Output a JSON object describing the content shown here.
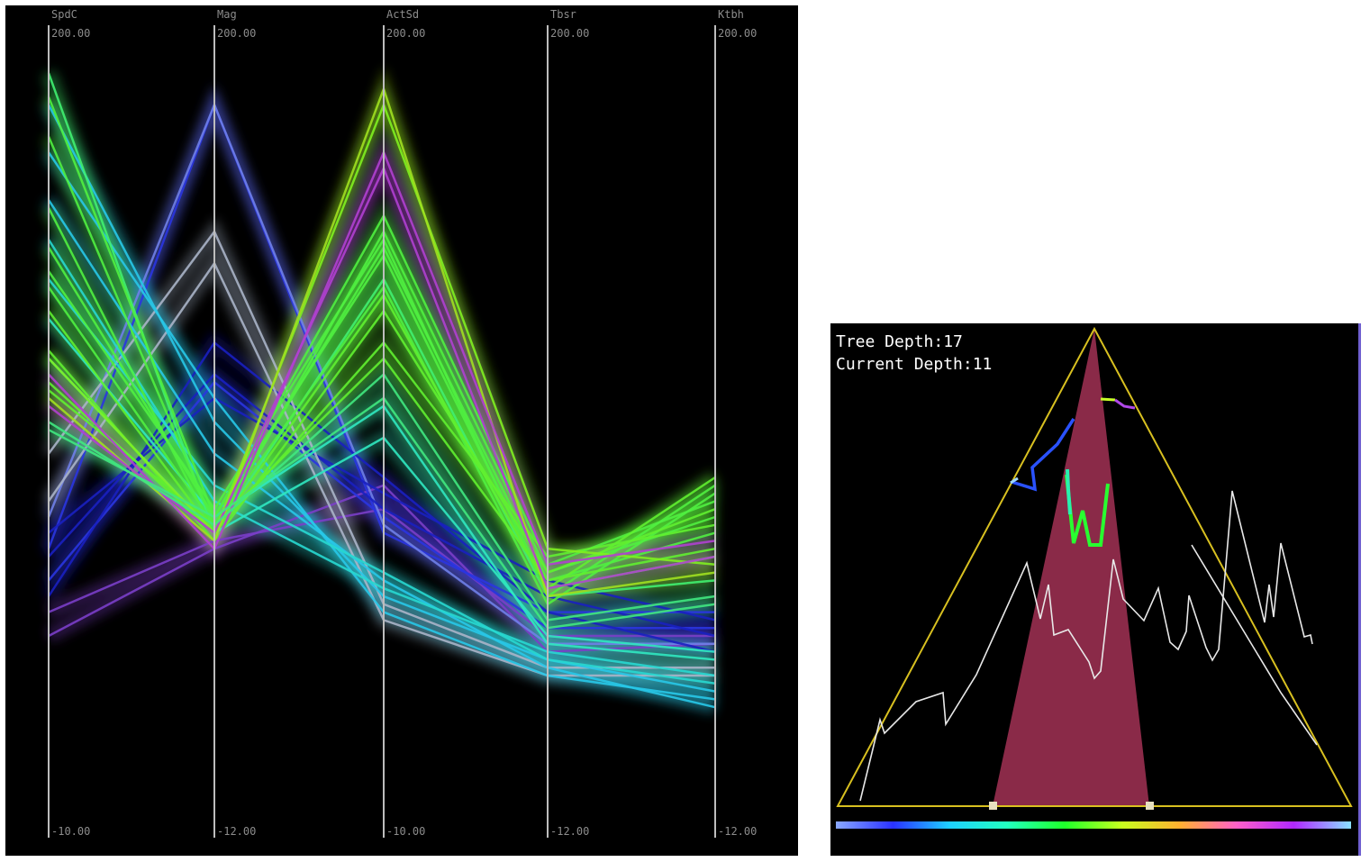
{
  "chart_data": [
    {
      "type": "parallel-coordinates",
      "axes": [
        {
          "name": "SpdC",
          "max_label": "200.00",
          "min_label": "-10.00"
        },
        {
          "name": "Mag",
          "max_label": "200.00",
          "min_label": "-12.00"
        },
        {
          "name": "ActSd",
          "max_label": "200.00",
          "min_label": "-10.00"
        },
        {
          "name": "Tbsr",
          "max_label": "200.00",
          "min_label": "-12.00"
        },
        {
          "name": "Ktbh",
          "max_label": "200.00",
          "min_label": "-12.00"
        }
      ],
      "value_range": [
        0,
        1
      ],
      "series": [
        {
          "color": "#7a3ec8",
          "values": [
            0.28,
            0.37,
            0.41,
            0.25,
            0.25
          ]
        },
        {
          "color": "#7a3ec8",
          "values": [
            0.25,
            0.36,
            0.44,
            0.23,
            0.24
          ]
        },
        {
          "color": "#2a35e0",
          "values": [
            0.32,
            0.57,
            0.4,
            0.26,
            0.26
          ]
        },
        {
          "color": "#2a35e0",
          "values": [
            0.36,
            0.92,
            0.38,
            0.28,
            0.28
          ]
        },
        {
          "color": "#6f7fe8",
          "values": [
            0.4,
            0.92,
            0.39,
            0.24,
            0.24
          ]
        },
        {
          "color": "#1a20c0",
          "values": [
            0.35,
            0.58,
            0.41,
            0.3,
            0.25
          ]
        },
        {
          "color": "#1a20c0",
          "values": [
            0.38,
            0.55,
            0.43,
            0.32,
            0.27
          ]
        },
        {
          "color": "#1a20c0",
          "values": [
            0.3,
            0.62,
            0.45,
            0.28,
            0.23
          ]
        },
        {
          "color": "#aab4c8",
          "values": [
            0.48,
            0.76,
            0.29,
            0.21,
            0.21
          ]
        },
        {
          "color": "#aab4c8",
          "values": [
            0.42,
            0.72,
            0.27,
            0.2,
            0.2
          ]
        },
        {
          "color": "#28c8e8",
          "values": [
            0.92,
            0.52,
            0.3,
            0.22,
            0.18
          ]
        },
        {
          "color": "#28c8e8",
          "values": [
            0.86,
            0.55,
            0.28,
            0.2,
            0.17
          ]
        },
        {
          "color": "#28c8e8",
          "values": [
            0.8,
            0.48,
            0.32,
            0.21,
            0.16
          ]
        },
        {
          "color": "#28d8d0",
          "values": [
            0.7,
            0.44,
            0.33,
            0.22,
            0.19
          ]
        },
        {
          "color": "#28d8d0",
          "values": [
            0.75,
            0.42,
            0.31,
            0.23,
            0.2
          ]
        },
        {
          "color": "#30e8c0",
          "values": [
            0.65,
            0.4,
            0.54,
            0.24,
            0.22
          ]
        },
        {
          "color": "#30e8c0",
          "values": [
            0.6,
            0.38,
            0.5,
            0.25,
            0.23
          ]
        },
        {
          "color": "#40f070",
          "values": [
            0.96,
            0.38,
            0.7,
            0.3,
            0.32
          ]
        },
        {
          "color": "#50f040",
          "values": [
            0.93,
            0.4,
            0.73,
            0.31,
            0.35
          ]
        },
        {
          "color": "#50f040",
          "values": [
            0.88,
            0.39,
            0.74,
            0.32,
            0.38
          ]
        },
        {
          "color": "#50f040",
          "values": [
            0.79,
            0.38,
            0.76,
            0.33,
            0.4
          ]
        },
        {
          "color": "#50f040",
          "values": [
            0.74,
            0.4,
            0.78,
            0.34,
            0.42
          ]
        },
        {
          "color": "#50f040",
          "values": [
            0.71,
            0.41,
            0.75,
            0.3,
            0.44
          ]
        },
        {
          "color": "#50f040",
          "values": [
            0.69,
            0.39,
            0.69,
            0.29,
            0.43
          ]
        },
        {
          "color": "#60f030",
          "values": [
            0.66,
            0.38,
            0.68,
            0.31,
            0.45
          ]
        },
        {
          "color": "#60f030",
          "values": [
            0.61,
            0.37,
            0.66,
            0.33,
            0.41
          ]
        },
        {
          "color": "#60f030",
          "values": [
            0.57,
            0.38,
            0.62,
            0.35,
            0.39
          ]
        },
        {
          "color": "#60f030",
          "values": [
            0.56,
            0.39,
            0.6,
            0.32,
            0.36
          ]
        },
        {
          "color": "#80f020",
          "values": [
            0.6,
            0.38,
            0.92,
            0.36,
            0.34
          ]
        },
        {
          "color": "#a0e020",
          "values": [
            0.55,
            0.37,
            0.94,
            0.3,
            0.33
          ]
        },
        {
          "color": "#b040d0",
          "values": [
            0.58,
            0.36,
            0.86,
            0.34,
            0.37
          ]
        },
        {
          "color": "#b040d0",
          "values": [
            0.54,
            0.38,
            0.84,
            0.31,
            0.35
          ]
        },
        {
          "color": "#40e880",
          "values": [
            0.52,
            0.39,
            0.58,
            0.27,
            0.3
          ]
        },
        {
          "color": "#40e880",
          "values": [
            0.51,
            0.4,
            0.55,
            0.26,
            0.29
          ]
        }
      ]
    },
    {
      "type": "tree-depth-view",
      "tree_depth_label": "Tree Depth:17",
      "current_depth_label": "Current Depth:11",
      "colorbar_colors": [
        "#8aa8ff",
        "#2a32ff",
        "#1ed2ff",
        "#22ffbf",
        "#1eff2a",
        "#c8ff1e",
        "#ffb030",
        "#ff60c8",
        "#b028ff",
        "#8ae0ff"
      ]
    }
  ]
}
